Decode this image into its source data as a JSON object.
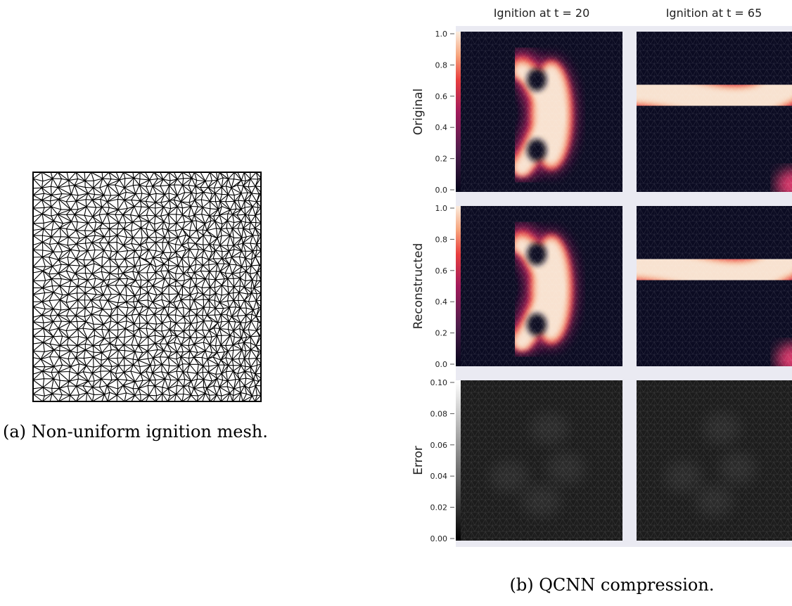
{
  "figure_a": {
    "caption": "(a) Non-uniform ignition mesh."
  },
  "figure_b": {
    "column_titles": [
      "Ignition at t = 20",
      "Ignition at t = 65"
    ],
    "rows": [
      {
        "label": "Original",
        "ticks": [
          "0.0",
          "0.2",
          "0.4",
          "0.6",
          "0.8",
          "1.0"
        ]
      },
      {
        "label": "Reconstructed",
        "ticks": [
          "0.0",
          "0.2",
          "0.4",
          "0.6",
          "0.8",
          "1.0"
        ]
      },
      {
        "label": "Error",
        "ticks": [
          "0.00",
          "0.02",
          "0.04",
          "0.06",
          "0.08",
          "0.10"
        ]
      }
    ],
    "caption": "(b) QCNN compression."
  }
}
